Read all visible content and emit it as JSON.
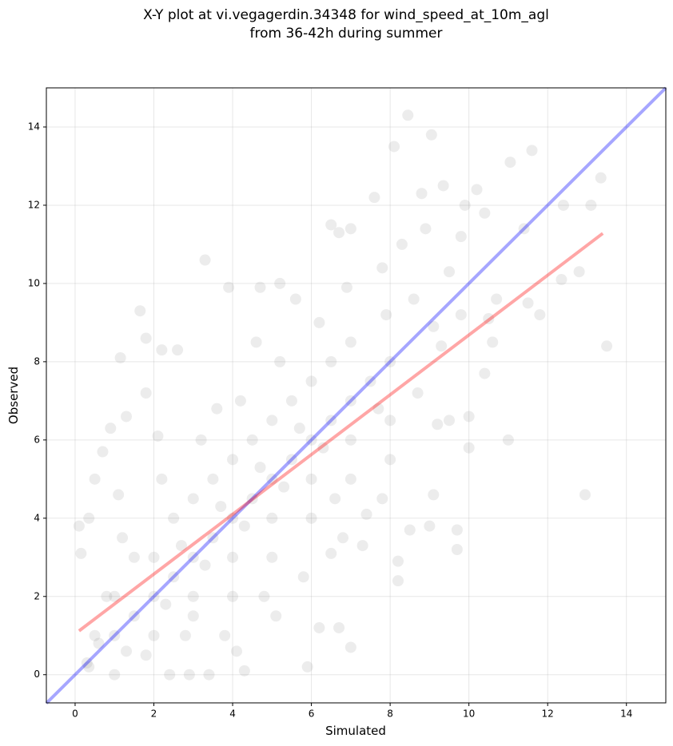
{
  "chart_data": {
    "type": "scatter",
    "title": [
      "X-Y plot at vi.vegagerdin.34348 for wind_speed_at_10m_agl",
      "from 36-42h during summer"
    ],
    "x_label": "Simulated",
    "y_label": "Observed",
    "xlim": [
      -0.73,
      15.0
    ],
    "ylim": [
      -0.72,
      15.0
    ],
    "xticks": [
      0,
      2,
      4,
      6,
      8,
      10,
      12,
      14
    ],
    "yticks": [
      0,
      2,
      4,
      6,
      8,
      10,
      12,
      14
    ],
    "grid": true,
    "color": "#808080",
    "alpha": 0.15,
    "x": [
      8.45,
      9.05,
      8.1,
      11.6,
      11.05,
      13.35,
      10.2,
      9.35,
      13.1,
      12.4,
      3.3,
      1.65,
      1.8,
      1.15,
      13.5,
      12.95,
      11.0,
      5.9,
      7.0,
      9.7,
      9.7,
      12.8,
      12.35,
      11.8,
      0.1,
      0.15,
      0.5,
      0.35,
      0.7,
      1.3,
      0.9,
      1.8,
      2.2,
      2.6,
      3.9,
      4.7,
      6.5,
      6.7,
      7.0,
      7.6,
      8.8,
      9.5,
      10.4,
      11.4,
      10.5,
      10.4,
      10.6,
      10.0,
      10.0,
      9.5,
      9.2,
      9.1,
      9.0,
      8.5,
      8.2,
      8.2,
      7.3,
      6.5,
      6.2,
      6.7,
      3.4,
      2.9,
      2.4,
      1.0,
      0.35,
      4.3,
      1,
      1.5,
      2,
      2.5,
      3,
      3.5,
      4,
      4.5,
      5,
      5.5,
      6,
      6.5,
      7,
      7.5,
      8,
      1,
      2,
      3,
      4,
      5,
      6,
      7,
      2,
      3,
      4,
      5,
      6,
      7,
      8,
      1.5,
      2.5,
      3.5,
      4.5,
      5.5,
      6.5,
      3,
      4,
      5,
      6,
      7,
      8,
      0.5,
      0.8,
      1.2,
      2.2,
      3.2,
      4.2,
      5.2,
      6.2,
      2.8,
      3.8,
      4.8,
      5.8,
      6.8,
      7.8,
      1.8,
      2.3,
      3.3,
      4.3,
      5.3,
      6.3,
      4.6,
      5.6,
      5.2,
      6.9,
      7.8,
      8.6,
      9.1,
      9.8,
      8.7,
      7.7,
      5.1,
      4.1,
      0.3,
      0.6,
      1.3,
      2.7,
      3.7,
      4.7,
      5.7,
      3.6,
      2.1,
      1.1,
      6.6,
      7.4,
      7.9,
      8.3,
      8.9,
      9.9,
      9.8,
      9.3,
      10.7,
      11.5
    ],
    "values": [
      14.3,
      13.8,
      13.5,
      13.4,
      13.1,
      12.7,
      12.4,
      12.5,
      12.0,
      12.0,
      10.6,
      9.3,
      8.6,
      8.1,
      8.4,
      4.6,
      6.0,
      0.2,
      0.7,
      3.2,
      3.7,
      10.3,
      10.1,
      9.2,
      3.8,
      3.1,
      5.0,
      4.0,
      5.7,
      6.6,
      6.3,
      7.2,
      8.3,
      8.3,
      9.9,
      9.9,
      11.5,
      11.3,
      11.4,
      12.2,
      12.3,
      10.3,
      11.8,
      11.4,
      9.1,
      7.7,
      8.5,
      6.6,
      5.8,
      6.5,
      6.4,
      4.6,
      3.8,
      3.7,
      2.9,
      2.4,
      3.3,
      3.1,
      1.2,
      1.2,
      0.0,
      0.0,
      0.0,
      0.0,
      0.2,
      0.1,
      1,
      1.5,
      2,
      2.5,
      3,
      3.5,
      4,
      4.5,
      5,
      5.5,
      6,
      6.5,
      7,
      7.5,
      8,
      2,
      3,
      4.5,
      5.5,
      6.5,
      7.5,
      8.5,
      1,
      2,
      3,
      4,
      5,
      6,
      6.5,
      3,
      4,
      5,
      6,
      7,
      8,
      1.5,
      2,
      3,
      4,
      5,
      5.5,
      1,
      2,
      3.5,
      5,
      6,
      7,
      8,
      9,
      1,
      1,
      2,
      2.5,
      3.5,
      4.5,
      0.5,
      1.8,
      2.8,
      3.8,
      4.8,
      5.8,
      8.5,
      9.6,
      10,
      9.9,
      10.4,
      9.6,
      8.9,
      9.2,
      7.2,
      6.8,
      1.5,
      0.6,
      0.3,
      0.8,
      0.6,
      3.3,
      4.3,
      5.3,
      6.3,
      6.8,
      6.1,
      4.6,
      4.5,
      4.1,
      9.2,
      11,
      11.4,
      12,
      11.2,
      8.4,
      9.6,
      9.5
    ],
    "lines": [
      {
        "color": "#0000ff",
        "x": [
          -0.73,
          15.0
        ],
        "values": [
          -0.73,
          15.0
        ]
      },
      {
        "color": "#ff0000",
        "x": [
          0.1,
          13.4
        ],
        "values": [
          1.12,
          11.28
        ]
      }
    ]
  }
}
